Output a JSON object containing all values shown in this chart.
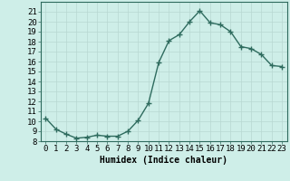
{
  "x": [
    0,
    1,
    2,
    3,
    4,
    5,
    6,
    7,
    8,
    9,
    10,
    11,
    12,
    13,
    14,
    15,
    16,
    17,
    18,
    19,
    20,
    21,
    22,
    23
  ],
  "y": [
    10.3,
    9.2,
    8.7,
    8.3,
    8.4,
    8.6,
    8.5,
    8.5,
    9.0,
    10.1,
    11.8,
    15.9,
    18.1,
    18.7,
    20.0,
    21.1,
    19.9,
    19.7,
    19.0,
    17.5,
    17.3,
    16.7,
    15.6,
    15.5
  ],
  "line_color": "#2e6b5e",
  "marker": "+",
  "marker_size": 4,
  "linewidth": 1.0,
  "bg_color": "#ceeee8",
  "grid_color": "#b8d8d2",
  "xlabel": "Humidex (Indice chaleur)",
  "xlim": [
    -0.5,
    23.5
  ],
  "ylim": [
    8,
    22
  ],
  "yticks": [
    8,
    9,
    10,
    11,
    12,
    13,
    14,
    15,
    16,
    17,
    18,
    19,
    20,
    21
  ],
  "xtick_labels": [
    "0",
    "1",
    "2",
    "3",
    "4",
    "5",
    "6",
    "7",
    "8",
    "9",
    "10",
    "11",
    "12",
    "13",
    "14",
    "15",
    "16",
    "17",
    "18",
    "19",
    "20",
    "21",
    "22",
    "23"
  ],
  "xlabel_fontsize": 7,
  "tick_fontsize": 6.5
}
